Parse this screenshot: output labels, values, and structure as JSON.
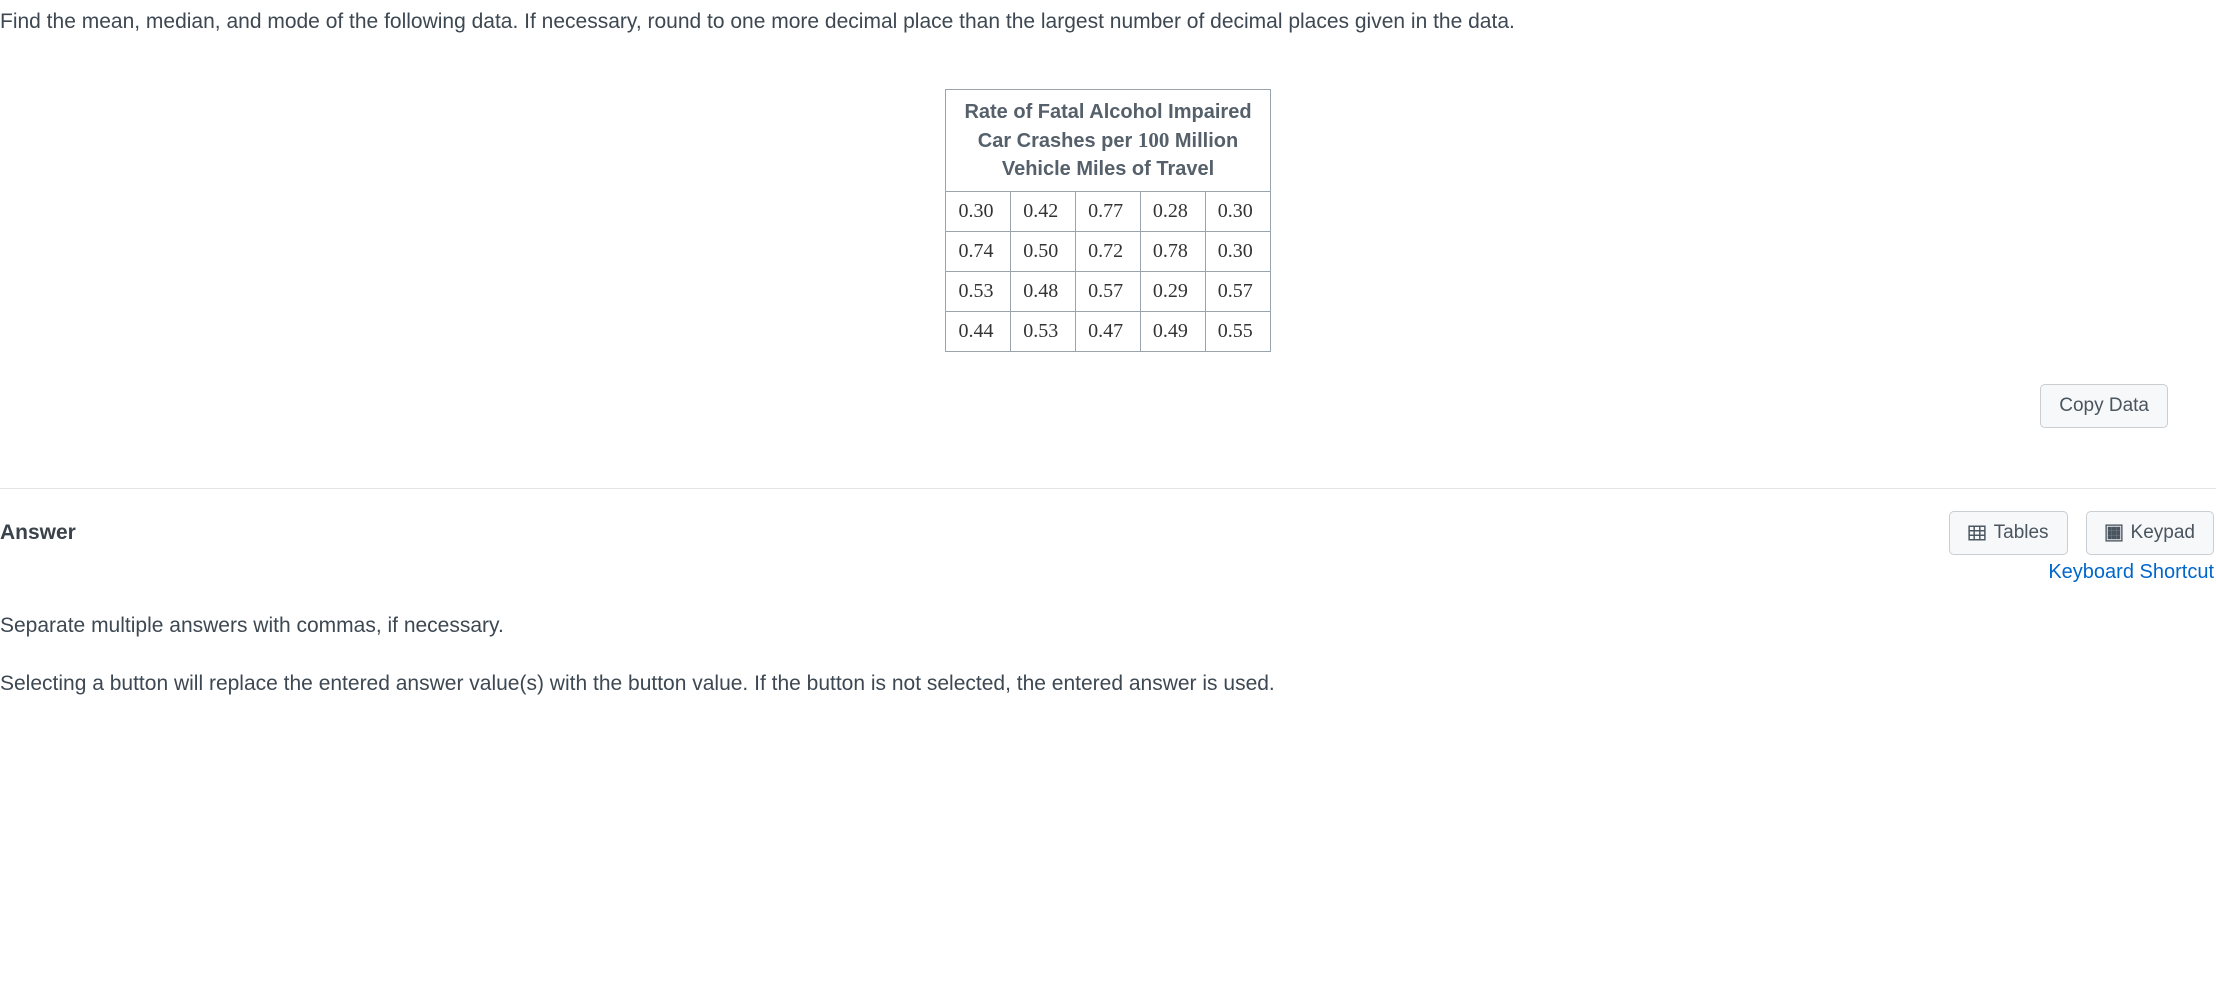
{
  "question": "Find the mean, median, and mode of the following data. If necessary, round to one more decimal place than the largest number of decimal places given in the data.",
  "data_table": {
    "header_line1": "Rate of Fatal Alcohol Impaired",
    "header_line2_before": "Car Crashes per ",
    "header_line2_number": "100",
    "header_line2_after": " Million",
    "header_line3": "Vehicle Miles of Travel",
    "cols": 5,
    "rows": [
      [
        "0.30",
        "0.42",
        "0.77",
        "0.28",
        "0.30"
      ],
      [
        "0.74",
        "0.50",
        "0.72",
        "0.78",
        "0.30"
      ],
      [
        "0.53",
        "0.48",
        "0.57",
        "0.29",
        "0.57"
      ],
      [
        "0.44",
        "0.53",
        "0.47",
        "0.49",
        "0.55"
      ]
    ],
    "border_color": "#9aa4ad",
    "header_text_color": "#55606a",
    "cell_text_color": "#333333"
  },
  "buttons": {
    "copy_data": "Copy Data",
    "tables": "Tables",
    "keypad": "Keypad"
  },
  "answer_section": {
    "label": "Answer",
    "keyboard_shortcut": "Keyboard Shortcut",
    "hint_separate": "Separate multiple answers with commas, if necessary.",
    "hint_selecting": "Selecting a button will replace the entered answer value(s) with the button value. If the button is not selected, the entered answer is used."
  },
  "colors": {
    "text": "#3d4852",
    "link": "#0066cc",
    "divider": "#e3e6e9",
    "button_bg": "#f7f8f9",
    "button_border": "#c9ced3"
  }
}
